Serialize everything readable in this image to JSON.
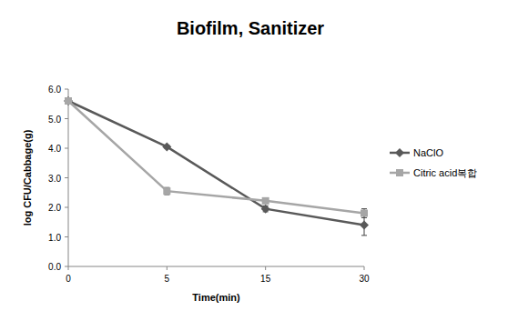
{
  "chart_data": {
    "type": "line",
    "title": "Biofilm, Sanitizer",
    "x_label": "Time(min)",
    "y_label": "log CFU/Cabbage(g)",
    "categories": [
      "0",
      "5",
      "15",
      "30"
    ],
    "series": [
      {
        "name": "NaClO",
        "color": "#595959",
        "marker": "diamond",
        "values": [
          5.6,
          4.05,
          1.95,
          1.4
        ],
        "errors": [
          0,
          0.05,
          0.1,
          0.35
        ]
      },
      {
        "name": "Citric acid복합",
        "color": "#a6a6a6",
        "marker": "square",
        "values": [
          5.6,
          2.55,
          2.22,
          1.8
        ],
        "errors": [
          0,
          0.12,
          0.05,
          0.15
        ]
      }
    ],
    "ylim": [
      0,
      6
    ],
    "yticks": [
      {
        "value": 0,
        "label": "0.0"
      },
      {
        "value": 1,
        "label": "1.0"
      },
      {
        "value": 2,
        "label": "2.0"
      },
      {
        "value": 3,
        "label": "3.0"
      },
      {
        "value": 4,
        "label": "4.0"
      },
      {
        "value": 5,
        "label": "5.0"
      },
      {
        "value": 6,
        "label": "6.0"
      }
    ],
    "grid": false,
    "legend": "right"
  }
}
